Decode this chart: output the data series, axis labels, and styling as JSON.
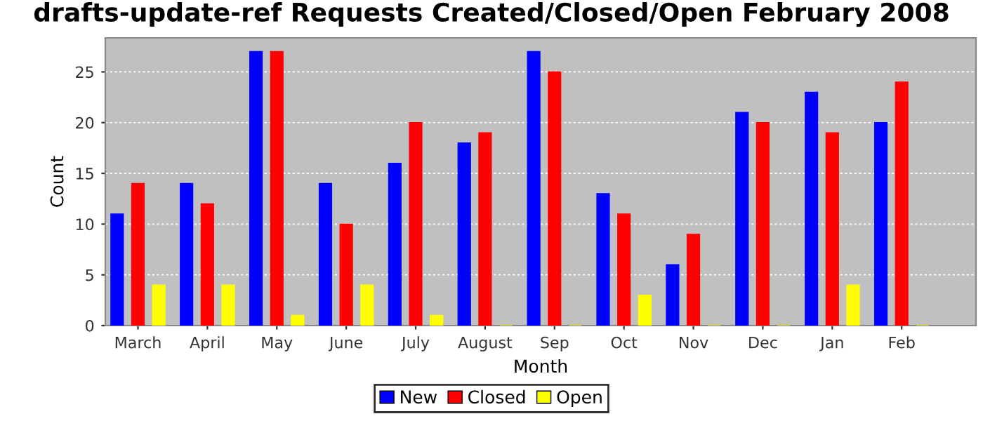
{
  "chart_data": {
    "type": "bar",
    "title": "drafts-update-ref Requests Created/Closed/Open February 2008",
    "xlabel": "Month",
    "ylabel": "Count",
    "categories": [
      "March",
      "April",
      "May",
      "June",
      "July",
      "August",
      "Sep",
      "Oct",
      "Nov",
      "Dec",
      "Jan",
      "Feb"
    ],
    "series": [
      {
        "name": "New",
        "color": "#0000ff",
        "values": [
          11,
          14,
          27,
          14,
          16,
          18,
          27,
          13,
          6,
          21,
          23,
          20
        ]
      },
      {
        "name": "Closed",
        "color": "#ff0000",
        "values": [
          14,
          12,
          27,
          10,
          20,
          19,
          25,
          11,
          9,
          20,
          19,
          24
        ]
      },
      {
        "name": "Open",
        "color": "#ffff00",
        "values": [
          4,
          4,
          1,
          4,
          1,
          0,
          0,
          3,
          0,
          0,
          4,
          0
        ]
      }
    ],
    "ylim": [
      0,
      28.35
    ],
    "yticks": [
      0,
      5,
      10,
      15,
      20,
      25
    ],
    "grid": "y",
    "legend": "bottom"
  }
}
